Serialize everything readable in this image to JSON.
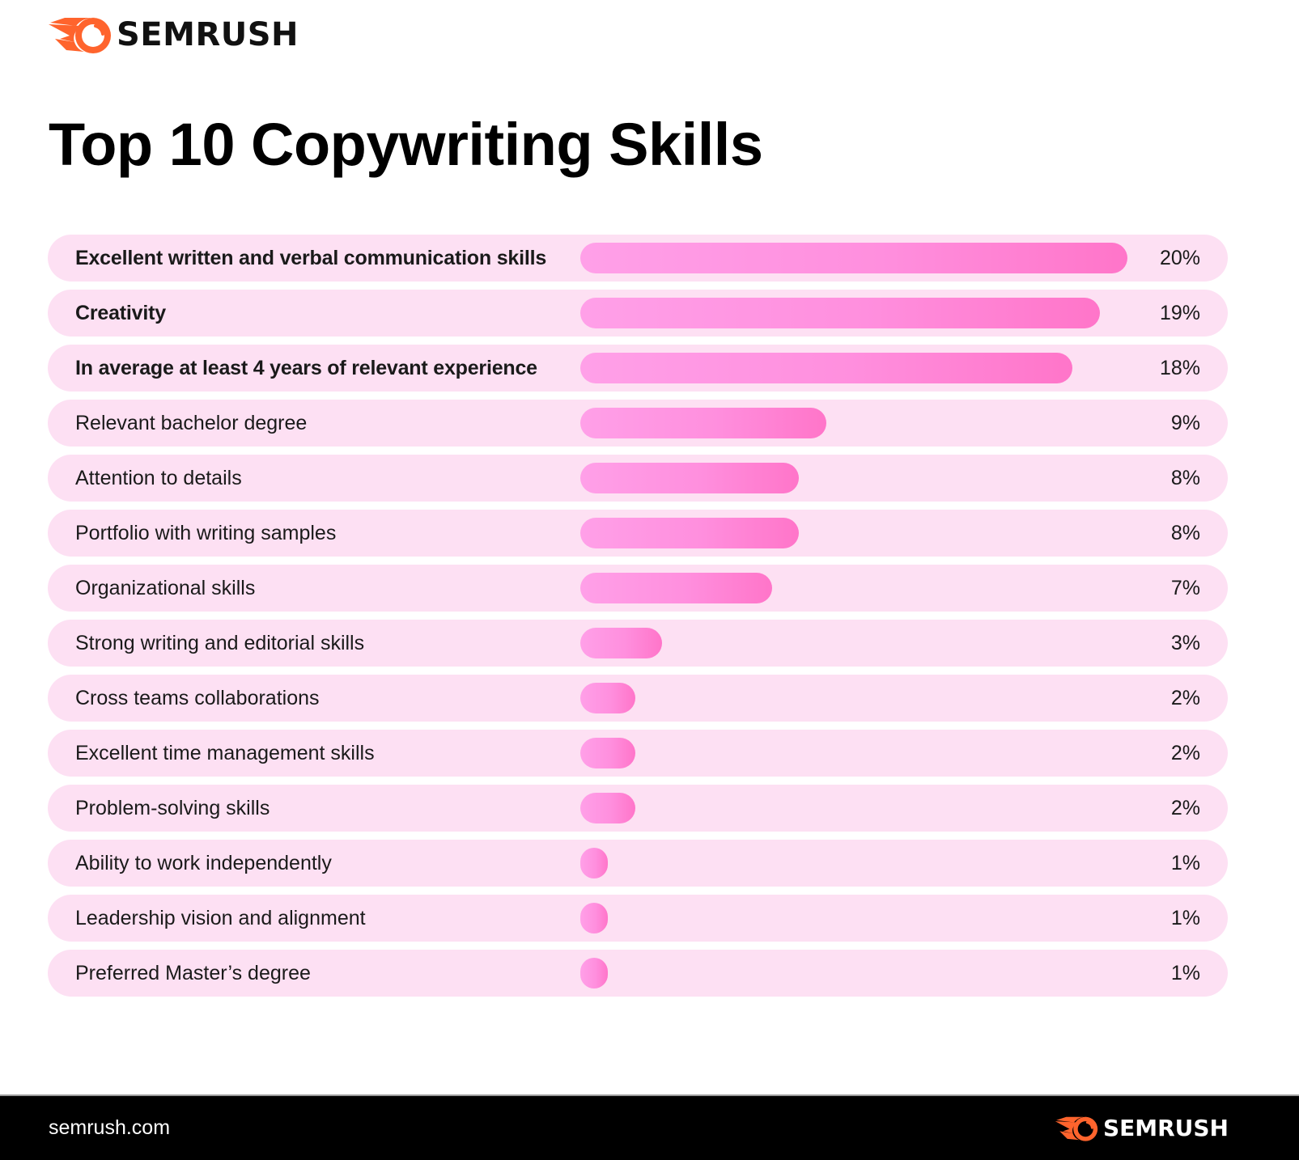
{
  "brand": {
    "name": "SEMRUSH",
    "accent_color": "#ff642d",
    "website": "semrush.com"
  },
  "title": "Top 10 Copywriting Skills",
  "colors": {
    "row_background": "#fde0f3",
    "bar_gradient_start": "#ffa0e8",
    "bar_gradient_end": "#ff75c9",
    "footer_background": "#000000"
  },
  "rows": [
    {
      "label": "Excellent written and verbal communication skills",
      "value": 20,
      "value_label": "20%",
      "strong": true
    },
    {
      "label": "Creativity",
      "value": 19,
      "value_label": "19%",
      "strong": true
    },
    {
      "label": "In average at least 4 years of relevant experience",
      "value": 18,
      "value_label": "18%",
      "strong": true
    },
    {
      "label": "Relevant bachelor degree",
      "value": 9,
      "value_label": "9%",
      "strong": false
    },
    {
      "label": "Attention to details",
      "value": 8,
      "value_label": "8%",
      "strong": false
    },
    {
      "label": "Portfolio with writing samples",
      "value": 8,
      "value_label": "8%",
      "strong": false
    },
    {
      "label": "Organizational skills",
      "value": 7,
      "value_label": "7%",
      "strong": false
    },
    {
      "label": "Strong writing and editorial skills",
      "value": 3,
      "value_label": "3%",
      "strong": false
    },
    {
      "label": "Cross teams collaborations",
      "value": 2,
      "value_label": "2%",
      "strong": false
    },
    {
      "label": "Excellent time management skills",
      "value": 2,
      "value_label": "2%",
      "strong": false
    },
    {
      "label": "Problem-solving skills",
      "value": 2,
      "value_label": "2%",
      "strong": false
    },
    {
      "label": "Ability to work independently",
      "value": 1,
      "value_label": "1%",
      "strong": false
    },
    {
      "label": "Leadership vision and alignment",
      "value": 1,
      "value_label": "1%",
      "strong": false
    },
    {
      "label": "Preferred Master’s degree",
      "value": 1,
      "value_label": "1%",
      "strong": false
    }
  ],
  "chart_data": {
    "type": "bar",
    "orientation": "horizontal",
    "title": "Top 10 Copywriting Skills",
    "xlabel": "",
    "ylabel": "",
    "unit": "%",
    "grid": false,
    "legend": null,
    "categories": [
      "Excellent written and verbal communication skills",
      "Creativity",
      "In average at least 4 years of relevant experience",
      "Relevant bachelor degree",
      "Attention to details",
      "Portfolio with writing samples",
      "Organizational skills",
      "Strong writing and editorial skills",
      "Cross teams collaborations",
      "Excellent time management skills",
      "Problem-solving skills",
      "Ability to work independently",
      "Leadership vision and alignment",
      "Preferred Master’s degree"
    ],
    "values": [
      20,
      19,
      18,
      9,
      8,
      8,
      7,
      3,
      2,
      2,
      2,
      1,
      1,
      1
    ],
    "value_labels": [
      "20%",
      "19%",
      "18%",
      "9%",
      "8%",
      "8%",
      "7%",
      "3%",
      "2%",
      "2%",
      "2%",
      "1%",
      "1%",
      "1%"
    ],
    "xlim": [
      0,
      20
    ]
  },
  "footer": {
    "url": "semrush.com",
    "logo_text": "SEMRUSH"
  }
}
